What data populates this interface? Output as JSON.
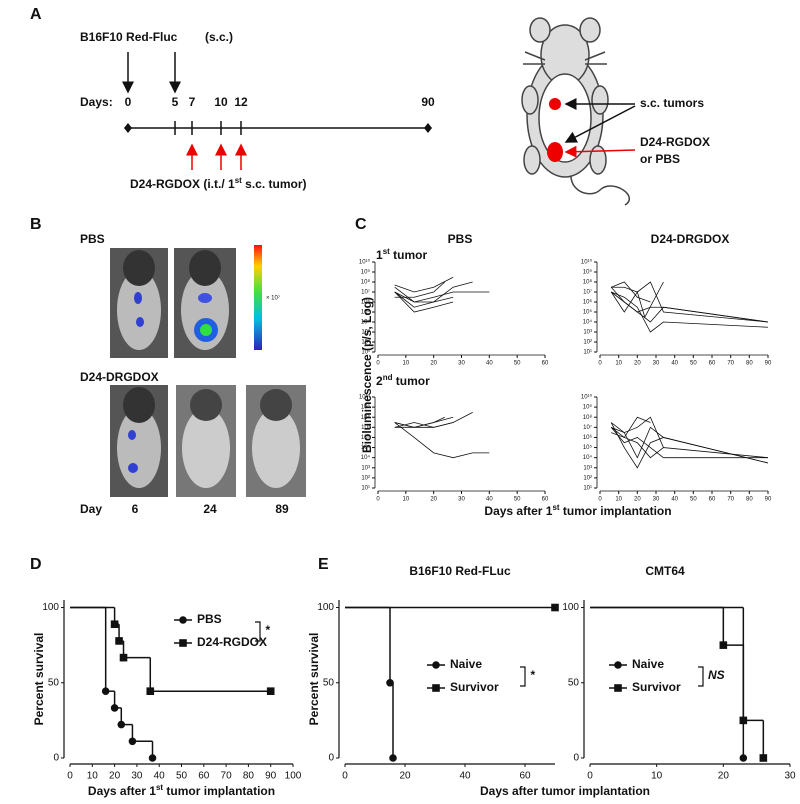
{
  "panel_labels": [
    "A",
    "B",
    "C",
    "D",
    "E"
  ],
  "timeline": {
    "cell_line": "B16F10 Red-Fluc",
    "route": "(s.c.)",
    "days_label": "Days:",
    "days": [
      0,
      5,
      7,
      10,
      12,
      90
    ],
    "treatment": [
      "D24-RGDOX  (i.t./ 1",
      "st",
      " s.c. tumor)"
    ]
  },
  "mouse_diagram": {
    "tumors": "s.c. tumors",
    "treatment": [
      "D24-RGDOX",
      "or PBS"
    ]
  },
  "imaging": {
    "groups": [
      "PBS",
      "D24-DRGDOX"
    ],
    "day_label": "Day",
    "days": [
      6,
      24,
      89
    ],
    "colorbar_label": "× 10⁷"
  },
  "panel_c": {
    "columns": [
      "PBS",
      "D24-DRGDOX"
    ],
    "rows": [
      [
        "1",
        "st",
        " tumor"
      ],
      [
        "2",
        "nd",
        " tumor"
      ]
    ],
    "ylabel": "Bioluminescence (p/s, Log)",
    "xlabel": [
      "Days after 1",
      "st",
      " tumor implantation"
    ]
  },
  "panel_e": {
    "titles": [
      "B16F10 Red-FLuc",
      "CMT64"
    ],
    "xlabel": "Days after tumor implantation"
  },
  "chart_data": [
    {
      "type": "line",
      "log_y": true,
      "color": "#111",
      "xlim": [
        0,
        60
      ],
      "xticks": [
        0,
        10,
        20,
        30,
        40,
        50,
        60
      ],
      "ylim": [
        10,
        10000000000
      ],
      "yticks": [
        {
          "value": 10,
          "label": "10¹"
        },
        {
          "value": 100,
          "label": "10²"
        },
        {
          "value": 1000,
          "label": "10³"
        },
        {
          "value": 10000,
          "label": "10⁴"
        },
        {
          "value": 100000,
          "label": "10⁵"
        },
        {
          "value": 1000000,
          "label": "10⁶"
        },
        {
          "value": 10000000,
          "label": "10⁷"
        },
        {
          "value": 100000000,
          "label": "10⁸"
        },
        {
          "value": 1000000000,
          "label": "10⁹"
        },
        {
          "value": 10000000000,
          "label": "10¹⁰"
        }
      ],
      "series": [
        {
          "x": [
            6,
            13,
            20,
            27,
            34,
            40
          ],
          "values": [
            30000000,
            1000000,
            3000000,
            10000000,
            10000000,
            10000000
          ]
        },
        {
          "x": [
            6,
            13,
            20,
            27
          ],
          "values": [
            10000000,
            300000,
            1000000,
            3000000
          ]
        },
        {
          "x": [
            6,
            13,
            20,
            27
          ],
          "values": [
            50000000,
            10000000,
            30000000,
            300000000
          ]
        },
        {
          "x": [
            6,
            13,
            20,
            27
          ],
          "values": [
            10000000,
            100000,
            300000,
            1000000
          ]
        },
        {
          "x": [
            6,
            13,
            20,
            24
          ],
          "values": [
            3000000,
            3000000,
            10000000,
            100000000
          ]
        },
        {
          "x": [
            6,
            13,
            20,
            27,
            34
          ],
          "values": [
            10000000,
            1000000,
            1000000,
            30000000,
            100000000
          ]
        }
      ]
    },
    {
      "type": "line",
      "log_y": true,
      "color": "#111",
      "xlim": [
        0,
        90
      ],
      "xticks": [
        0,
        10,
        20,
        30,
        40,
        50,
        60,
        70,
        80,
        90
      ],
      "ylim": [
        10,
        10000000000
      ],
      "yticks": [
        {
          "value": 10,
          "label": "10¹"
        },
        {
          "value": 100,
          "label": "10²"
        },
        {
          "value": 1000,
          "label": "10³"
        },
        {
          "value": 10000,
          "label": "10⁴"
        },
        {
          "value": 100000,
          "label": "10⁵"
        },
        {
          "value": 1000000,
          "label": "10⁶"
        },
        {
          "value": 10000000,
          "label": "10⁷"
        },
        {
          "value": 100000000,
          "label": "10⁸"
        },
        {
          "value": 1000000000,
          "label": "10⁹"
        },
        {
          "value": 10000000000,
          "label": "10¹⁰"
        }
      ],
      "series": [
        {
          "x": [
            6,
            13,
            20,
            27,
            34,
            90
          ],
          "values": [
            30000000,
            1000000,
            100000,
            10000,
            300000,
            10000
          ]
        },
        {
          "x": [
            6,
            13,
            20,
            27,
            34,
            90
          ],
          "values": [
            10000000,
            3000000,
            300000,
            1000,
            10000,
            3000
          ]
        },
        {
          "x": [
            6,
            13,
            20,
            27,
            34,
            90
          ],
          "values": [
            30000000,
            30000000,
            10000000,
            100000000,
            100000,
            10000
          ]
        },
        {
          "x": [
            6,
            13,
            20,
            24,
            34
          ],
          "values": [
            10000000,
            100000,
            10000000,
            30000,
            100000000
          ]
        },
        {
          "x": [
            6,
            13,
            20,
            27,
            34,
            90
          ],
          "values": [
            10000000,
            1000000,
            100000,
            300000,
            300000,
            10000
          ]
        },
        {
          "x": [
            6,
            13,
            20,
            27
          ],
          "values": [
            30000000,
            100000000,
            3000000,
            1000000
          ]
        }
      ]
    },
    {
      "type": "line",
      "log_y": true,
      "color": "#111",
      "xlim": [
        0,
        60
      ],
      "xticks": [
        0,
        10,
        20,
        30,
        40,
        50,
        60
      ],
      "ylim": [
        10,
        10000000000
      ],
      "yticks": [
        {
          "value": 10,
          "label": "10¹"
        },
        {
          "value": 100,
          "label": "10²"
        },
        {
          "value": 1000,
          "label": "10³"
        },
        {
          "value": 10000,
          "label": "10⁴"
        },
        {
          "value": 100000,
          "label": "10⁵"
        },
        {
          "value": 1000000,
          "label": "10⁶"
        },
        {
          "value": 10000000,
          "label": "10⁷"
        },
        {
          "value": 100000000,
          "label": "10⁸"
        },
        {
          "value": 1000000000,
          "label": "10⁹"
        },
        {
          "value": 10000000000,
          "label": "10¹⁰"
        }
      ],
      "series": [
        {
          "x": [
            6,
            13,
            20,
            27,
            34,
            40
          ],
          "values": [
            30000000,
            1000000,
            30000,
            10000,
            30000,
            30000
          ]
        },
        {
          "x": [
            6,
            13,
            20,
            27
          ],
          "values": [
            30000000,
            10000000,
            30000000,
            100000000
          ]
        },
        {
          "x": [
            6,
            13,
            20,
            27,
            34
          ],
          "values": [
            10000000,
            30000000,
            10000000,
            30000000,
            300000000
          ]
        },
        {
          "x": [
            6,
            13,
            20,
            27
          ],
          "values": [
            10000000,
            10000000,
            10000000,
            30000000
          ]
        },
        {
          "x": [
            6,
            13,
            20,
            24
          ],
          "values": [
            30000000,
            10000000,
            30000000,
            100000000
          ]
        }
      ]
    },
    {
      "type": "line",
      "log_y": true,
      "color": "#111",
      "xlim": [
        0,
        90
      ],
      "xticks": [
        0,
        10,
        20,
        30,
        40,
        50,
        60,
        70,
        80,
        90
      ],
      "ylim": [
        10,
        10000000000
      ],
      "yticks": [
        {
          "value": 10,
          "label": "10¹"
        },
        {
          "value": 100,
          "label": "10²"
        },
        {
          "value": 1000,
          "label": "10³"
        },
        {
          "value": 10000,
          "label": "10⁴"
        },
        {
          "value": 100000,
          "label": "10⁵"
        },
        {
          "value": 1000000,
          "label": "10⁶"
        },
        {
          "value": 10000000,
          "label": "10⁷"
        },
        {
          "value": 100000000,
          "label": "10⁸"
        },
        {
          "value": 1000000000,
          "label": "10⁹"
        },
        {
          "value": 10000000000,
          "label": "10¹⁰"
        }
      ],
      "series": [
        {
          "x": [
            6,
            13,
            20,
            27,
            34,
            90
          ],
          "values": [
            30000000,
            3000000,
            10000,
            10000000,
            1000000,
            3000
          ]
        },
        {
          "x": [
            6,
            13,
            20,
            27,
            34,
            90
          ],
          "values": [
            10000000,
            1000000,
            300000,
            10000,
            100000,
            10000
          ]
        },
        {
          "x": [
            6,
            13,
            20,
            27,
            34,
            90
          ],
          "values": [
            30000000,
            100000,
            1000,
            300000,
            1000000,
            3000
          ]
        },
        {
          "x": [
            6,
            13,
            20,
            27,
            34
          ],
          "values": [
            10000000,
            3000000,
            10000000,
            100000000,
            100000
          ]
        },
        {
          "x": [
            6,
            13,
            20,
            27
          ],
          "values": [
            3000000,
            1000000,
            100000000,
            30000000
          ]
        },
        {
          "x": [
            6,
            13,
            20,
            27,
            34,
            90
          ],
          "values": [
            10000000,
            300000,
            1000000,
            100000,
            10000,
            10000
          ]
        }
      ]
    },
    {
      "type": "survival",
      "xlim": [
        0,
        100
      ],
      "xticks": [
        0,
        10,
        20,
        30,
        40,
        50,
        60,
        70,
        80,
        90,
        100
      ],
      "ylim": [
        0,
        105
      ],
      "yticks": [
        0,
        50,
        100
      ],
      "ylabel": "Percent survival",
      "xlabel": [
        "Days after 1",
        "st",
        " tumor implantation"
      ],
      "annotation": "*",
      "series": [
        {
          "name": "PBS",
          "color": "#111",
          "marker": "circle",
          "x": [
            0,
            16,
            20,
            23,
            28,
            37
          ],
          "values": [
            100,
            44.4,
            33.3,
            22.2,
            11.1,
            0
          ]
        },
        {
          "name": "D24-RGDOX",
          "color": "#111",
          "marker": "square",
          "x": [
            0,
            20,
            22,
            24,
            36,
            90
          ],
          "values": [
            100,
            88.9,
            77.8,
            66.7,
            44.4,
            44.4
          ]
        }
      ]
    },
    {
      "type": "survival",
      "xlim": [
        0,
        70
      ],
      "xticks": [
        0,
        20,
        40,
        60
      ],
      "ylim": [
        0,
        105
      ],
      "yticks": [
        0,
        50,
        100
      ],
      "ylabel": "Percent survival",
      "annotation": "*",
      "series": [
        {
          "name": "Naive",
          "color": "#111",
          "marker": "circle",
          "x": [
            0,
            15,
            16
          ],
          "values": [
            100,
            50,
            0
          ]
        },
        {
          "name": "Survivor",
          "color": "#111",
          "marker": "square",
          "x": [
            0,
            70
          ],
          "values": [
            100,
            100
          ]
        }
      ]
    },
    {
      "type": "survival",
      "xlim": [
        0,
        30
      ],
      "xticks": [
        0,
        10,
        20,
        30
      ],
      "ylim": [
        0,
        105
      ],
      "yticks": [
        0,
        50,
        100
      ],
      "annotation": "NS",
      "series": [
        {
          "name": "Naive",
          "color": "#111",
          "marker": "circle",
          "x": [
            0,
            23
          ],
          "values": [
            100,
            0
          ]
        },
        {
          "name": "Survivor",
          "color": "#111",
          "marker": "square",
          "x": [
            0,
            20,
            23,
            26
          ],
          "values": [
            100,
            75,
            25,
            0
          ]
        }
      ]
    }
  ]
}
